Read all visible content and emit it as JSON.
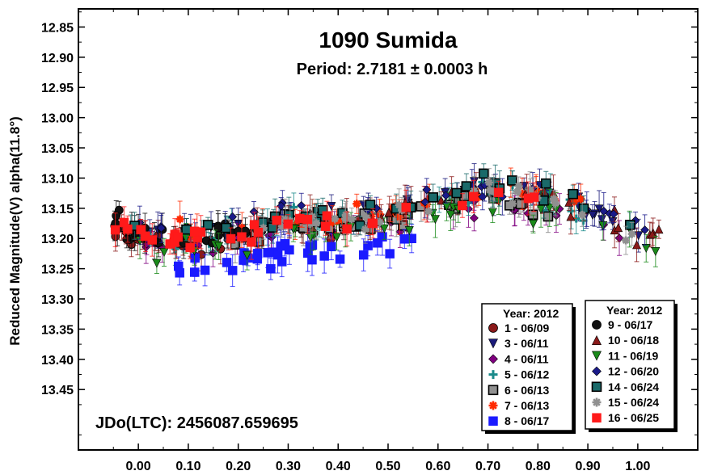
{
  "chart_data": {
    "type": "scatter",
    "title": "1090 Sumida",
    "subtitle": "Period: 2.7181 ± 0.0003 h",
    "xlabel": "",
    "ylabel": "Reduced Magnitude(V) alpha(11.8°)",
    "annotation": "JDo(LTC): 2456087.659695",
    "xlim": [
      -0.12,
      1.12
    ],
    "ylim": [
      13.55,
      12.82
    ],
    "y_inverted": true,
    "x_ticks": [
      "0.00",
      "0.10",
      "0.20",
      "0.30",
      "0.40",
      "0.50",
      "0.60",
      "0.70",
      "0.80",
      "0.90",
      "1.00"
    ],
    "x_tick_values": [
      0.0,
      0.1,
      0.2,
      0.3,
      0.4,
      0.5,
      0.6,
      0.7,
      0.8,
      0.9,
      1.0
    ],
    "y_ticks": [
      "12.85",
      "12.90",
      "12.95",
      "13.00",
      "13.05",
      "13.10",
      "13.15",
      "13.20",
      "13.25",
      "13.30",
      "13.35",
      "13.40",
      "13.45"
    ],
    "y_tick_values": [
      12.85,
      12.9,
      12.95,
      13.0,
      13.05,
      13.1,
      13.15,
      13.2,
      13.25,
      13.3,
      13.35,
      13.4,
      13.45
    ],
    "grid": false,
    "light_curve": {
      "mean": 13.168,
      "phase_points": [
        0.0,
        0.1,
        0.2,
        0.3,
        0.4,
        0.5,
        0.6,
        0.7,
        0.8,
        0.9,
        1.0
      ],
      "magnitudes": [
        13.19,
        13.2,
        13.19,
        13.17,
        13.17,
        13.16,
        13.14,
        13.12,
        13.13,
        13.16,
        13.19
      ]
    },
    "legends": [
      {
        "title": "Year: 2012",
        "position": "bottom-center",
        "entries": [
          {
            "label": "1 - 06/09",
            "marker": "circle",
            "color": "#8b1a1a"
          },
          {
            "label": "3 - 06/11",
            "marker": "triangle-down",
            "color": "#1a1a7a"
          },
          {
            "label": "4 - 06/11",
            "marker": "diamond",
            "color": "#800080"
          },
          {
            "label": "5 - 06/12",
            "marker": "plus",
            "color": "#1a8a8a"
          },
          {
            "label": "6 - 06/13",
            "marker": "square-gray",
            "color": "#808080"
          },
          {
            "label": "7 - 06/13",
            "marker": "asterisk",
            "color": "#ff2a00"
          },
          {
            "label": "8 - 06/17",
            "marker": "square",
            "color": "#1a1aff"
          }
        ]
      },
      {
        "title": "Year: 2012",
        "position": "bottom-right",
        "entries": [
          {
            "label": "9 - 06/17",
            "marker": "circle",
            "color": "#111111"
          },
          {
            "label": "10 - 06/18",
            "marker": "triangle-up",
            "color": "#8b1a1a"
          },
          {
            "label": "11 - 06/19",
            "marker": "triangle-down",
            "color": "#1a8a1a"
          },
          {
            "label": "12 - 06/20",
            "marker": "diamond",
            "color": "#1a1a8a"
          },
          {
            "label": "14 - 06/24",
            "marker": "square-teal",
            "color": "#1a6a6a"
          },
          {
            "label": "15 - 06/24",
            "marker": "asterisk",
            "color": "#909090"
          },
          {
            "label": "16 - 06/25",
            "marker": "square",
            "color": "#ff1a1a"
          }
        ]
      }
    ]
  }
}
